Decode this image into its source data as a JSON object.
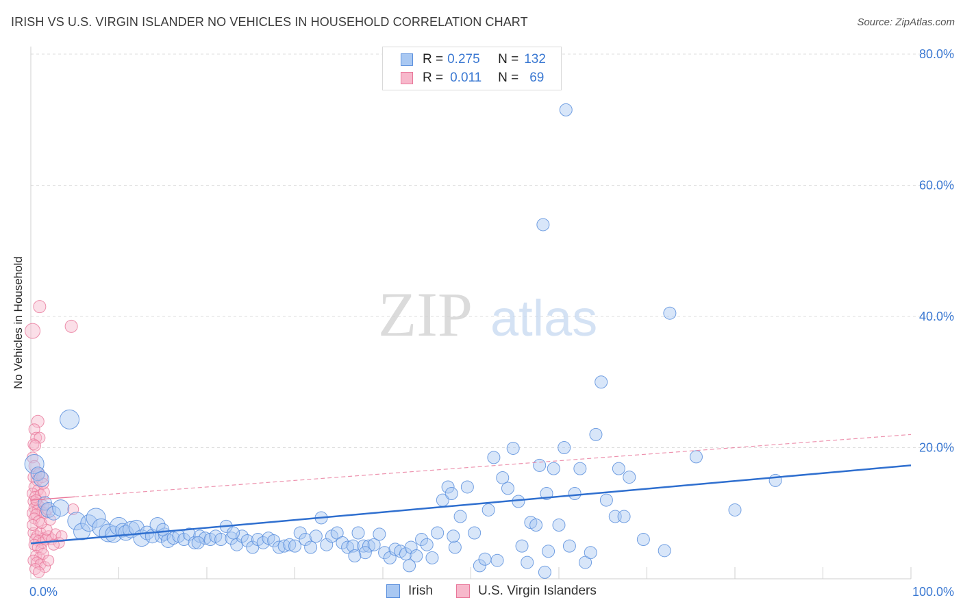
{
  "title": "IRISH VS U.S. VIRGIN ISLANDER NO VEHICLES IN HOUSEHOLD CORRELATION CHART",
  "source": "Source: ZipAtlas.com",
  "watermark": {
    "zip": "ZIP",
    "atlas": "atlas"
  },
  "legend": {
    "rows": [
      {
        "r_label": "R =",
        "r_value": "0.275",
        "n_label": "N =",
        "n_value": "132"
      },
      {
        "r_label": "R =",
        "r_value": "0.011",
        "n_label": "N =",
        "n_value": "69"
      }
    ]
  },
  "bottom_legend": {
    "series1": "Irish",
    "series2": "U.S. Virgin Islanders"
  },
  "colors": {
    "blue_fill": "#a9c8f2",
    "blue_stroke": "#5a8fdd",
    "blue_line": "#2f6fcf",
    "pink_fill": "#f7b8cb",
    "pink_stroke": "#e9779a",
    "pink_line": "#e9779a",
    "axis_text": "#3a78d2",
    "grid": "#dddddd"
  },
  "chart_data": {
    "type": "scatter",
    "title": "IRISH VS U.S. VIRGIN ISLANDER NO VEHICLES IN HOUSEHOLD CORRELATION CHART",
    "xlabel": "",
    "ylabel": "No Vehicles in Household",
    "xlim": [
      0,
      100
    ],
    "ylim": [
      0,
      80
    ],
    "x_tick_labels": [
      "0.0%",
      "100.0%"
    ],
    "y_ticks": [
      20,
      40,
      60,
      80
    ],
    "y_tick_labels": [
      "20.0%",
      "40.0%",
      "60.0%",
      "80.0%"
    ],
    "series": [
      {
        "name": "Irish",
        "trend": {
          "x": [
            0,
            100
          ],
          "y": [
            5.4,
            17.3
          ]
        },
        "points": [
          [
            0.4,
            17.5,
            14
          ],
          [
            0.8,
            16.0,
            10
          ],
          [
            1.2,
            15.2,
            11
          ],
          [
            1.6,
            11.5,
            10
          ],
          [
            2.0,
            10.5,
            11
          ],
          [
            2.6,
            10.0,
            10
          ],
          [
            3.4,
            10.8,
            12
          ],
          [
            4.4,
            24.3,
            14
          ],
          [
            5.2,
            8.8,
            13
          ],
          [
            5.8,
            7.2,
            12
          ],
          [
            6.6,
            8.5,
            12
          ],
          [
            7.4,
            9.3,
            14
          ],
          [
            8.0,
            7.8,
            13
          ],
          [
            8.8,
            7.0,
            13
          ],
          [
            9.4,
            6.8,
            12
          ],
          [
            10.0,
            8.0,
            13
          ],
          [
            10.4,
            7.4,
            10
          ],
          [
            10.8,
            7.0,
            11
          ],
          [
            11.4,
            7.5,
            12
          ],
          [
            12.0,
            7.8,
            11
          ],
          [
            12.6,
            6.2,
            12
          ],
          [
            13.2,
            7.0,
            10
          ],
          [
            13.8,
            6.5,
            10
          ],
          [
            14.4,
            8.2,
            11
          ],
          [
            14.8,
            6.5,
            9
          ],
          [
            15.2,
            6.8,
            9
          ],
          [
            15.6,
            5.8,
            10
          ],
          [
            16.2,
            6.2,
            9
          ],
          [
            16.8,
            6.5,
            9
          ],
          [
            17.4,
            6.0,
            9
          ],
          [
            18.0,
            6.8,
            9
          ],
          [
            18.6,
            5.5,
            9
          ],
          [
            19.2,
            6.5,
            9
          ],
          [
            19.8,
            6.2,
            9
          ],
          [
            20.4,
            6.0,
            9
          ],
          [
            21.0,
            6.5,
            9
          ],
          [
            21.6,
            6.0,
            9
          ],
          [
            22.2,
            8.0,
            9
          ],
          [
            22.8,
            6.2,
            9
          ],
          [
            23.4,
            5.2,
            9
          ],
          [
            24.0,
            6.5,
            9
          ],
          [
            24.6,
            5.8,
            9
          ],
          [
            25.2,
            4.8,
            9
          ],
          [
            25.8,
            6.0,
            9
          ],
          [
            26.4,
            5.5,
            9
          ],
          [
            27.0,
            6.2,
            9
          ],
          [
            27.6,
            5.8,
            9
          ],
          [
            28.2,
            4.8,
            9
          ],
          [
            28.8,
            5.0,
            9
          ],
          [
            29.4,
            5.2,
            9
          ],
          [
            30.0,
            5.0,
            9
          ],
          [
            30.6,
            7.0,
            9
          ],
          [
            31.2,
            6.0,
            9
          ],
          [
            31.8,
            4.8,
            9
          ],
          [
            32.4,
            6.5,
            9
          ],
          [
            33.0,
            9.3,
            9
          ],
          [
            33.6,
            5.2,
            9
          ],
          [
            34.2,
            6.5,
            9
          ],
          [
            34.8,
            7.0,
            9
          ],
          [
            35.4,
            5.5,
            9
          ],
          [
            36.0,
            4.8,
            9
          ],
          [
            36.6,
            5.0,
            9
          ],
          [
            37.2,
            7.0,
            9
          ],
          [
            37.8,
            5.0,
            9
          ],
          [
            38.4,
            5.0,
            9
          ],
          [
            39.0,
            5.2,
            9
          ],
          [
            39.6,
            6.8,
            9
          ],
          [
            40.2,
            4.0,
            9
          ],
          [
            40.8,
            3.2,
            9
          ],
          [
            41.4,
            4.5,
            9
          ],
          [
            42.0,
            4.2,
            9
          ],
          [
            42.6,
            3.8,
            9
          ],
          [
            43.2,
            4.8,
            9
          ],
          [
            43.8,
            3.5,
            9
          ],
          [
            44.4,
            6.0,
            9
          ],
          [
            45.0,
            5.2,
            9
          ],
          [
            45.6,
            3.2,
            9
          ],
          [
            46.2,
            7.0,
            9
          ],
          [
            46.8,
            12.0,
            9
          ],
          [
            47.4,
            14.0,
            9
          ],
          [
            47.8,
            13.0,
            9
          ],
          [
            48.2,
            4.8,
            9
          ],
          [
            48.8,
            9.5,
            9
          ],
          [
            49.6,
            14.0,
            9
          ],
          [
            50.4,
            7.0,
            9
          ],
          [
            51.0,
            2.0,
            9
          ],
          [
            51.6,
            3.0,
            9
          ],
          [
            52.0,
            10.5,
            9
          ],
          [
            52.6,
            18.5,
            9
          ],
          [
            53.0,
            2.8,
            9
          ],
          [
            53.6,
            15.4,
            9
          ],
          [
            54.2,
            13.8,
            9
          ],
          [
            54.8,
            19.9,
            9
          ],
          [
            55.4,
            11.8,
            9
          ],
          [
            55.8,
            5.0,
            9
          ],
          [
            56.4,
            2.5,
            9
          ],
          [
            56.8,
            8.6,
            9
          ],
          [
            57.4,
            8.2,
            9
          ],
          [
            57.8,
            17.3,
            9
          ],
          [
            58.4,
            1.0,
            9
          ],
          [
            58.8,
            4.2,
            9
          ],
          [
            59.4,
            16.8,
            9
          ],
          [
            60.0,
            8.2,
            9
          ],
          [
            60.6,
            20.0,
            9
          ],
          [
            61.2,
            5.0,
            9
          ],
          [
            62.4,
            16.8,
            9
          ],
          [
            63.0,
            2.5,
            9
          ],
          [
            63.6,
            4.0,
            9
          ],
          [
            64.2,
            22.0,
            9
          ],
          [
            64.8,
            30.0,
            9
          ],
          [
            65.4,
            12.0,
            9
          ],
          [
            66.4,
            9.5,
            9
          ],
          [
            66.8,
            16.8,
            9
          ],
          [
            67.4,
            9.5,
            9
          ],
          [
            68.0,
            15.5,
            9
          ],
          [
            69.6,
            6.0,
            9
          ],
          [
            72.0,
            4.3,
            9
          ],
          [
            72.6,
            40.5,
            9
          ],
          [
            75.6,
            18.6,
            9
          ],
          [
            80.0,
            10.5,
            9
          ],
          [
            84.6,
            15.0,
            9
          ],
          [
            58.6,
            13.0,
            9
          ],
          [
            61.8,
            13.0,
            9
          ],
          [
            48.0,
            6.5,
            9
          ],
          [
            23.0,
            7.0,
            9
          ],
          [
            19.0,
            5.5,
            9
          ],
          [
            15.0,
            7.5,
            9
          ],
          [
            43.0,
            2.0,
            9
          ],
          [
            38.0,
            4.0,
            9
          ],
          [
            60.8,
            71.5,
            9
          ],
          [
            58.2,
            54.0,
            9
          ],
          [
            36.8,
            3.5,
            9
          ]
        ]
      },
      {
        "name": "U.S. Virgin Islanders",
        "trend": {
          "x": [
            0,
            100
          ],
          "y": [
            12.0,
            22.0
          ]
        },
        "points": [
          [
            0.2,
            37.8,
            11
          ],
          [
            1.0,
            41.5,
            9
          ],
          [
            4.6,
            38.5,
            9
          ],
          [
            0.8,
            24.0,
            9
          ],
          [
            0.4,
            22.8,
            8
          ],
          [
            0.6,
            21.5,
            8
          ],
          [
            1.0,
            21.5,
            8
          ],
          [
            0.3,
            20.5,
            8
          ],
          [
            0.5,
            20.3,
            8
          ],
          [
            0.2,
            18.5,
            8
          ],
          [
            0.4,
            17.2,
            8
          ],
          [
            0.6,
            16.0,
            8
          ],
          [
            0.3,
            15.5,
            8
          ],
          [
            0.7,
            15.0,
            8
          ],
          [
            0.9,
            16.0,
            8
          ],
          [
            1.3,
            15.5,
            8
          ],
          [
            0.4,
            14.0,
            8
          ],
          [
            0.8,
            13.5,
            8
          ],
          [
            0.2,
            13.0,
            8
          ],
          [
            0.5,
            12.5,
            8
          ],
          [
            1.1,
            12.8,
            8
          ],
          [
            1.5,
            13.2,
            8
          ],
          [
            0.3,
            11.8,
            8
          ],
          [
            0.7,
            11.5,
            8
          ],
          [
            1.0,
            11.0,
            8
          ],
          [
            1.4,
            11.2,
            8
          ],
          [
            0.4,
            10.8,
            8
          ],
          [
            0.8,
            10.5,
            8
          ],
          [
            1.2,
            10.2,
            8
          ],
          [
            0.2,
            10.0,
            8
          ],
          [
            0.6,
            9.8,
            8
          ],
          [
            1.6,
            10.0,
            8
          ],
          [
            1.9,
            10.6,
            8
          ],
          [
            4.8,
            10.6,
            8
          ],
          [
            0.4,
            9.2,
            8
          ],
          [
            0.9,
            8.8,
            8
          ],
          [
            0.3,
            7.0,
            8
          ],
          [
            0.7,
            6.5,
            8
          ],
          [
            1.1,
            7.0,
            8
          ],
          [
            1.5,
            6.2,
            8
          ],
          [
            0.5,
            6.0,
            8
          ],
          [
            0.9,
            5.8,
            8
          ],
          [
            1.3,
            5.5,
            8
          ],
          [
            1.7,
            6.0,
            8
          ],
          [
            2.0,
            6.5,
            8
          ],
          [
            2.4,
            6.0,
            8
          ],
          [
            2.8,
            6.8,
            8
          ],
          [
            3.2,
            5.5,
            8
          ],
          [
            0.4,
            5.2,
            8
          ],
          [
            0.8,
            4.8,
            8
          ],
          [
            1.2,
            4.5,
            8
          ],
          [
            0.6,
            3.5,
            8
          ],
          [
            1.0,
            3.2,
            8
          ],
          [
            1.4,
            3.8,
            8
          ],
          [
            0.3,
            2.8,
            8
          ],
          [
            0.7,
            2.5,
            8
          ],
          [
            1.1,
            2.2,
            8
          ],
          [
            1.6,
            1.8,
            8
          ],
          [
            2.0,
            2.8,
            8
          ],
          [
            0.5,
            1.5,
            8
          ],
          [
            0.9,
            1.0,
            8
          ],
          [
            3.5,
            6.5,
            8
          ],
          [
            2.6,
            5.2,
            8
          ],
          [
            1.8,
            7.5,
            8
          ],
          [
            0.2,
            8.2,
            8
          ],
          [
            1.2,
            8.5,
            8
          ],
          [
            2.2,
            9.0,
            8
          ],
          [
            0.6,
            12.0,
            8
          ],
          [
            1.4,
            14.5,
            8
          ]
        ]
      }
    ]
  }
}
